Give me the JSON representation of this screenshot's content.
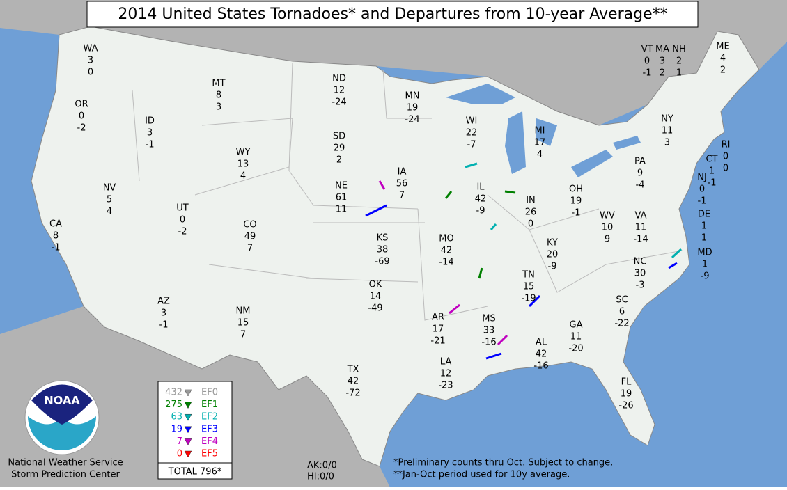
{
  "title": "2014 United States Tornadoes* and Departures from 10-year Average**",
  "states": [
    {
      "name": "WA",
      "tornadoes": 3,
      "departure": 0
    },
    {
      "name": "OR",
      "tornadoes": 0,
      "departure": -2
    },
    {
      "name": "CA",
      "tornadoes": 8,
      "departure": -1
    },
    {
      "name": "NV",
      "tornadoes": 5,
      "departure": 4
    },
    {
      "name": "ID",
      "tornadoes": 3,
      "departure": -1
    },
    {
      "name": "MT",
      "tornadoes": 8,
      "departure": 3
    },
    {
      "name": "WY",
      "tornadoes": 13,
      "departure": 4
    },
    {
      "name": "UT",
      "tornadoes": 0,
      "departure": -2
    },
    {
      "name": "CO",
      "tornadoes": 49,
      "departure": 7
    },
    {
      "name": "AZ",
      "tornadoes": 3,
      "departure": -1
    },
    {
      "name": "NM",
      "tornadoes": 15,
      "departure": 7
    },
    {
      "name": "ND",
      "tornadoes": 12,
      "departure": -24
    },
    {
      "name": "SD",
      "tornadoes": 29,
      "departure": 2
    },
    {
      "name": "NE",
      "tornadoes": 61,
      "departure": 11
    },
    {
      "name": "KS",
      "tornadoes": 38,
      "departure": -69
    },
    {
      "name": "OK",
      "tornadoes": 14,
      "departure": -49
    },
    {
      "name": "TX",
      "tornadoes": 42,
      "departure": -72
    },
    {
      "name": "MN",
      "tornadoes": 19,
      "departure": -24
    },
    {
      "name": "IA",
      "tornadoes": 56,
      "departure": 7
    },
    {
      "name": "MO",
      "tornadoes": 42,
      "departure": -14
    },
    {
      "name": "AR",
      "tornadoes": 17,
      "departure": -21
    },
    {
      "name": "LA",
      "tornadoes": 12,
      "departure": -23
    },
    {
      "name": "WI",
      "tornadoes": 22,
      "departure": -7
    },
    {
      "name": "IL",
      "tornadoes": 42,
      "departure": -9
    },
    {
      "name": "MI",
      "tornadoes": 17,
      "departure": 4
    },
    {
      "name": "IN",
      "tornadoes": 26,
      "departure": 0
    },
    {
      "name": "OH",
      "tornadoes": 19,
      "departure": -1
    },
    {
      "name": "KY",
      "tornadoes": 20,
      "departure": -9
    },
    {
      "name": "TN",
      "tornadoes": 15,
      "departure": -19
    },
    {
      "name": "MS",
      "tornadoes": 33,
      "departure": -16
    },
    {
      "name": "AL",
      "tornadoes": 42,
      "departure": -16
    },
    {
      "name": "GA",
      "tornadoes": 11,
      "departure": -20
    },
    {
      "name": "FL",
      "tornadoes": 19,
      "departure": -26
    },
    {
      "name": "SC",
      "tornadoes": 6,
      "departure": -22
    },
    {
      "name": "NC",
      "tornadoes": 30,
      "departure": -3
    },
    {
      "name": "VA",
      "tornadoes": 11,
      "departure": -14
    },
    {
      "name": "WV",
      "tornadoes": 10,
      "departure": 9
    },
    {
      "name": "PA",
      "tornadoes": 9,
      "departure": -4
    },
    {
      "name": "NY",
      "tornadoes": 11,
      "departure": 3
    },
    {
      "name": "VT",
      "tornadoes": 0,
      "departure": -1
    },
    {
      "name": "MA",
      "tornadoes": 3,
      "departure": 2
    },
    {
      "name": "NH",
      "tornadoes": 2,
      "departure": 1
    },
    {
      "name": "ME",
      "tornadoes": 4,
      "departure": 2
    },
    {
      "name": "RI",
      "tornadoes": 0,
      "departure": 0
    },
    {
      "name": "CT",
      "tornadoes": 1,
      "departure": -1
    },
    {
      "name": "NJ",
      "tornadoes": 0,
      "departure": -1
    },
    {
      "name": "DE",
      "tornadoes": 1,
      "departure": 1
    },
    {
      "name": "MD",
      "tornadoes": 1,
      "departure": -9
    }
  ],
  "legend": {
    "rows": [
      {
        "count": 432,
        "label": "EF0",
        "color": "#999999"
      },
      {
        "count": 275,
        "label": "EF1",
        "color": "#008000"
      },
      {
        "count": 63,
        "label": "EF2",
        "color": "#00b0b0"
      },
      {
        "count": 19,
        "label": "EF3",
        "color": "#0000ff"
      },
      {
        "count": 7,
        "label": "EF4",
        "color": "#c000c0"
      },
      {
        "count": 0,
        "label": "EF5",
        "color": "#ff0000"
      }
    ],
    "total": "TOTAL 796*"
  },
  "other_counts": [
    "AK:0/0",
    "HI:0/0"
  ],
  "footnotes": [
    "*Preliminary counts thru Oct. Subject to change.",
    "**Jan-Oct period used for 10y average."
  ],
  "credits": [
    "National Weather Service",
    "Storm Prediction Center"
  ],
  "logo": "NOAA"
}
